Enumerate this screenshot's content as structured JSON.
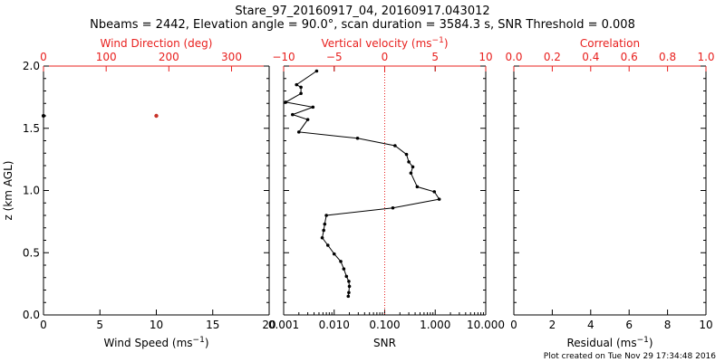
{
  "title_line1": "Stare_97_20160917_04, 20160917.043012",
  "title_line2": "Nbeams = 2442, Elevation angle = 90.0°, scan duration = 3584.3 s, SNR Threshold = 0.008",
  "footer": "Plot created on Tue Nov 29 17:34:48 2016",
  "colors": {
    "axis": "#000000",
    "accent": "#e8201e",
    "wind_dir_point": "#c83228"
  },
  "chart_data": [
    {
      "type": "scatter",
      "name_panel": "wind",
      "ylabel": "z (km AGL)",
      "ylim": [
        0,
        2
      ],
      "yticks": [
        "0.0",
        "0.5",
        "1.0",
        "1.5",
        "2.0"
      ],
      "xlabel_bottom": "Wind Speed (ms",
      "xlabel_bottom_sup": "−1",
      "xlabel_bottom_end": ")",
      "xlim_bottom": [
        0,
        20
      ],
      "xticks_bottom": [
        "0",
        "5",
        "10",
        "15",
        "20"
      ],
      "xlabel_top": "Wind Direction (deg)",
      "xlim_top": [
        0,
        360
      ],
      "xticks_top": [
        "0",
        "100",
        "200",
        "300"
      ],
      "speed_points": [
        {
          "x": 0,
          "y": 1.6
        }
      ],
      "direction_points": [
        {
          "x": 180,
          "y": 1.6
        }
      ]
    },
    {
      "type": "line",
      "name_panel": "snr",
      "xlabel_bottom": "SNR",
      "xscale": "log",
      "xlim_bottom": [
        0.001,
        10
      ],
      "xticks_bottom": [
        "0.001",
        "0.010",
        "0.100",
        "1.000",
        "10.000"
      ],
      "xlabel_top": "Vertical velocity (ms",
      "xlabel_top_sup": "−1",
      "xlabel_top_end": ")",
      "xlim_top": [
        -10,
        10
      ],
      "xticks_top": [
        "−10",
        "−5",
        "0",
        "5",
        "10"
      ],
      "zero_velocity_line": 0,
      "ylim": [
        0,
        2
      ],
      "points": [
        {
          "x": 0.0045,
          "y": 1.96
        },
        {
          "x": 0.0018,
          "y": 1.85
        },
        {
          "x": 0.0022,
          "y": 1.83
        },
        {
          "x": 0.0022,
          "y": 1.78
        },
        {
          "x": 0.0011,
          "y": 1.71
        },
        {
          "x": 0.0038,
          "y": 1.67
        },
        {
          "x": 0.0015,
          "y": 1.61
        },
        {
          "x": 0.003,
          "y": 1.57
        },
        {
          "x": 0.002,
          "y": 1.47
        },
        {
          "x": 0.029,
          "y": 1.42
        },
        {
          "x": 0.16,
          "y": 1.36
        },
        {
          "x": 0.27,
          "y": 1.29
        },
        {
          "x": 0.3,
          "y": 1.23
        },
        {
          "x": 0.36,
          "y": 1.19
        },
        {
          "x": 0.33,
          "y": 1.14
        },
        {
          "x": 0.44,
          "y": 1.03
        },
        {
          "x": 0.96,
          "y": 0.99
        },
        {
          "x": 1.2,
          "y": 0.93
        },
        {
          "x": 0.145,
          "y": 0.86
        },
        {
          "x": 0.007,
          "y": 0.8
        },
        {
          "x": 0.0065,
          "y": 0.73
        },
        {
          "x": 0.0062,
          "y": 0.68
        },
        {
          "x": 0.0058,
          "y": 0.62
        },
        {
          "x": 0.0075,
          "y": 0.56
        },
        {
          "x": 0.01,
          "y": 0.49
        },
        {
          "x": 0.0135,
          "y": 0.43
        },
        {
          "x": 0.0155,
          "y": 0.37
        },
        {
          "x": 0.0175,
          "y": 0.31
        },
        {
          "x": 0.0195,
          "y": 0.27
        },
        {
          "x": 0.02,
          "y": 0.23
        },
        {
          "x": 0.0195,
          "y": 0.18
        },
        {
          "x": 0.019,
          "y": 0.15
        }
      ]
    },
    {
      "type": "line",
      "name_panel": "residual",
      "xlabel_bottom": "Residual (ms",
      "xlabel_bottom_sup": "−1",
      "xlabel_bottom_end": ")",
      "xlim_bottom": [
        0,
        10
      ],
      "xticks_bottom": [
        "0",
        "2",
        "4",
        "6",
        "8",
        "10"
      ],
      "xlabel_top": "Correlation",
      "xlim_top": [
        0,
        1
      ],
      "xticks_top": [
        "0.0",
        "0.2",
        "0.4",
        "0.6",
        "0.8",
        "1.0"
      ],
      "ylim": [
        0,
        2
      ],
      "points": []
    }
  ]
}
